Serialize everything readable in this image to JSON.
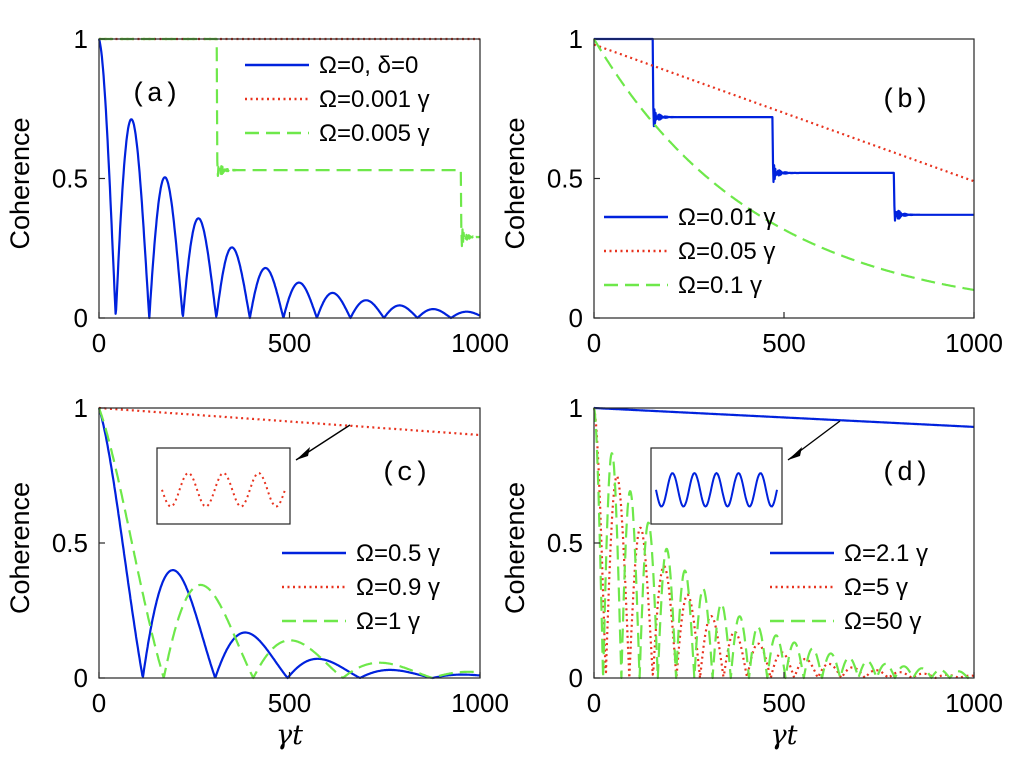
{
  "chart_data": [
    {
      "type": "line",
      "panel_label": "(a)",
      "ylabel": "Coherence",
      "xlabel": "",
      "xlim": [
        0,
        1000
      ],
      "ylim": [
        0,
        1
      ],
      "xticks": [
        "0",
        "500",
        "1000"
      ],
      "yticks": [
        "0",
        "0.5",
        "1"
      ],
      "legend_position": "top-right",
      "series": [
        {
          "name": "Ω=0, δ=0",
          "color": "#0022dd",
          "dash": "solid",
          "model": "abs_damped_cos",
          "amp": 1.0,
          "period": 88,
          "decay": 255
        },
        {
          "name": "Ω=0.001 γ",
          "color": "#e8331f",
          "dash": "dotted",
          "model": "steps",
          "start": 1.0,
          "jumps": []
        },
        {
          "name": "Ω=0.005 γ",
          "color": "#6ee84a",
          "dash": "dashed",
          "model": "steps",
          "start": 1.0,
          "jumps": [
            [
              310,
              0.53
            ],
            [
              950,
              0.29
            ]
          ]
        }
      ]
    },
    {
      "type": "line",
      "panel_label": "(b)",
      "ylabel": "Coherence",
      "xlabel": "",
      "xlim": [
        0,
        1000
      ],
      "ylim": [
        0,
        1
      ],
      "xticks": [
        "0",
        "500",
        "1000"
      ],
      "yticks": [
        "0",
        "0.5",
        "1"
      ],
      "legend_position": "bottom-left",
      "series": [
        {
          "name": "Ω=0.01 γ",
          "color": "#0022dd",
          "dash": "solid",
          "model": "steps",
          "start": 1.0,
          "jumps": [
            [
              155,
              0.72
            ],
            [
              470,
              0.52
            ],
            [
              790,
              0.37
            ]
          ]
        },
        {
          "name": "Ω=0.05 γ",
          "color": "#e8331f",
          "dash": "dotted",
          "model": "linear",
          "start": 0.98,
          "end": 0.49
        },
        {
          "name": "Ω=0.1 γ",
          "color": "#6ee84a",
          "dash": "dashed",
          "model": "exp_decay",
          "start": 1.0,
          "tau": 435
        }
      ]
    },
    {
      "type": "line",
      "panel_label": "(c)",
      "ylabel": "Coherence",
      "xlabel": "γt",
      "xlim": [
        0,
        1000
      ],
      "ylim": [
        0,
        1
      ],
      "xticks": [
        "0",
        "500",
        "1000"
      ],
      "yticks": [
        "0",
        "0.5",
        "1"
      ],
      "legend_position": "bottom-right",
      "series": [
        {
          "name": "Ω=0.5 γ",
          "color": "#0022dd",
          "dash": "solid",
          "model": "abs_damped_cos_shift",
          "amp": 1.0,
          "first_zero": 115,
          "period": 380,
          "decay": 220
        },
        {
          "name": "Ω=0.9 γ",
          "color": "#e8331f",
          "dash": "dotted",
          "model": "linear",
          "start": 1.0,
          "end": 0.9
        },
        {
          "name": "Ω=1 γ",
          "color": "#6ee84a",
          "dash": "dashed",
          "model": "abs_damped_cos_shift",
          "amp": 1.0,
          "first_zero": 170,
          "period": 470,
          "decay": 260
        }
      ]
    },
    {
      "type": "line",
      "panel_label": "(d)",
      "ylabel": "Coherence",
      "xlabel": "γt",
      "xlim": [
        0,
        1000
      ],
      "ylim": [
        0,
        1
      ],
      "xticks": [
        "0",
        "500",
        "1000"
      ],
      "yticks": [
        "0",
        "0.5",
        "1"
      ],
      "legend_position": "bottom-right",
      "series": [
        {
          "name": "Ω=2.1 γ",
          "color": "#0022dd",
          "dash": "solid",
          "model": "linear",
          "start": 1.0,
          "end": 0.93
        },
        {
          "name": "Ω=5 γ",
          "color": "#e8331f",
          "dash": "dotted",
          "model": "abs_damped_cos",
          "amp": 1.0,
          "period": 62,
          "decay": 210
        },
        {
          "name": "Ω=50 γ",
          "color": "#6ee84a",
          "dash": "dashed",
          "model": "abs_damped_cos",
          "amp": 1.0,
          "period": 48,
          "decay": 260
        }
      ]
    }
  ]
}
